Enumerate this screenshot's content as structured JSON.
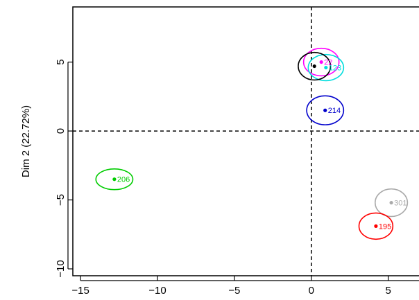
{
  "chart_data": {
    "type": "scatter",
    "title": "",
    "xlabel": "",
    "ylabel": "Dim 2 (22.72%)",
    "xlim": [
      -15.5,
      7.0
    ],
    "ylim": [
      -10.5,
      9.0
    ],
    "x_ticks": [
      -15,
      -10,
      -5,
      0,
      5
    ],
    "y_ticks": [
      -10,
      -5,
      0,
      5
    ],
    "x_tick_labels": [
      "−15",
      "−10",
      "−5",
      "0",
      "5"
    ],
    "y_tick_labels": [
      "−10",
      "−5",
      "0",
      "5"
    ],
    "reference_lines": {
      "x": 0,
      "y": 0,
      "style": "dashed"
    },
    "grid": false,
    "points": [
      {
        "label": "206",
        "x": -12.8,
        "y": -3.5,
        "color": "#00cc00",
        "ellipse_rx": 1.2,
        "ellipse_ry": 0.75
      },
      {
        "label": "214",
        "x": 0.9,
        "y": 1.5,
        "color": "#0000cc",
        "ellipse_rx": 1.2,
        "ellipse_ry": 1.05
      },
      {
        "label": "22",
        "x": 0.65,
        "y": 5.0,
        "color": "#ff00ff",
        "ellipse_rx": 1.15,
        "ellipse_ry": 1.0
      },
      {
        "label": "123",
        "x": 0.95,
        "y": 4.6,
        "color": "#00dddd",
        "ellipse_rx": 1.15,
        "ellipse_ry": 0.95
      },
      {
        "label": "",
        "x": 0.2,
        "y": 4.7,
        "color": "#000000",
        "ellipse_rx": 1.05,
        "ellipse_ry": 1.0
      },
      {
        "label": "301",
        "x": 5.2,
        "y": -5.2,
        "color": "#aaaaaa",
        "ellipse_rx": 1.05,
        "ellipse_ry": 1.0
      },
      {
        "label": "195",
        "x": 4.2,
        "y": -6.9,
        "color": "#ff0000",
        "ellipse_rx": 1.1,
        "ellipse_ry": 0.95
      }
    ]
  }
}
